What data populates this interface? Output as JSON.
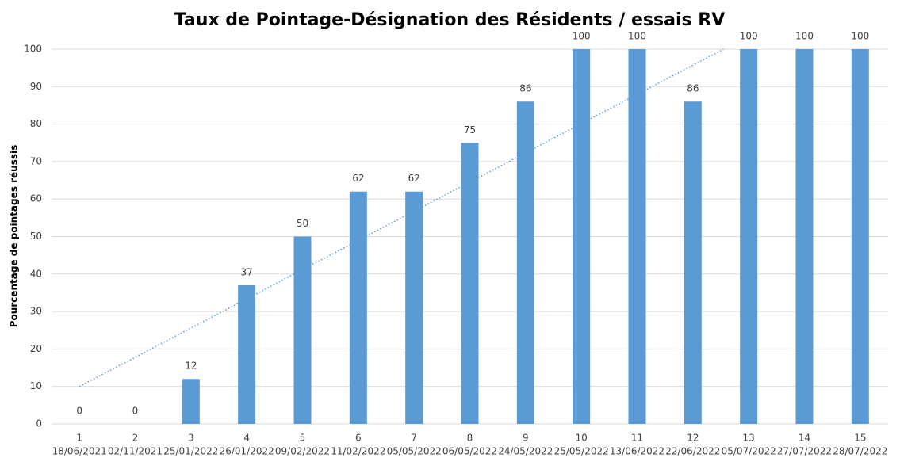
{
  "chart_data": {
    "type": "bar",
    "title": "Taux de Pointage-Désignation des Résidents / essais RV",
    "y_label": "Pourcentage de pointages réussis",
    "categories": [
      "1",
      "2",
      "3",
      "4",
      "5",
      "6",
      "7",
      "8",
      "9",
      "10",
      "11",
      "12",
      "13",
      "14",
      "15"
    ],
    "dates": [
      "18/06/2021",
      "02/11/2021",
      "25/01/2022",
      "26/01/2022",
      "09/02/2022",
      "11/02/2022",
      "05/05/2022",
      "06/05/2022",
      "24/05/2022",
      "25/05/2022",
      "13/06/2022",
      "22/06/2022",
      "05/07/2022",
      "27/07/2022",
      "28/07/2022"
    ],
    "values": [
      0,
      0,
      12,
      37,
      50,
      62,
      62,
      75,
      86,
      100,
      100,
      86,
      100,
      100,
      100
    ],
    "color": "#5b9bd5",
    "ylim": [
      0,
      100
    ],
    "yticks": [
      0,
      10,
      20,
      30,
      40,
      50,
      60,
      70,
      80,
      90,
      100
    ],
    "grid": true,
    "trendline": {
      "color": "#5b9bd5",
      "x": [
        1,
        12.55
      ],
      "values": [
        10,
        100
      ]
    }
  }
}
